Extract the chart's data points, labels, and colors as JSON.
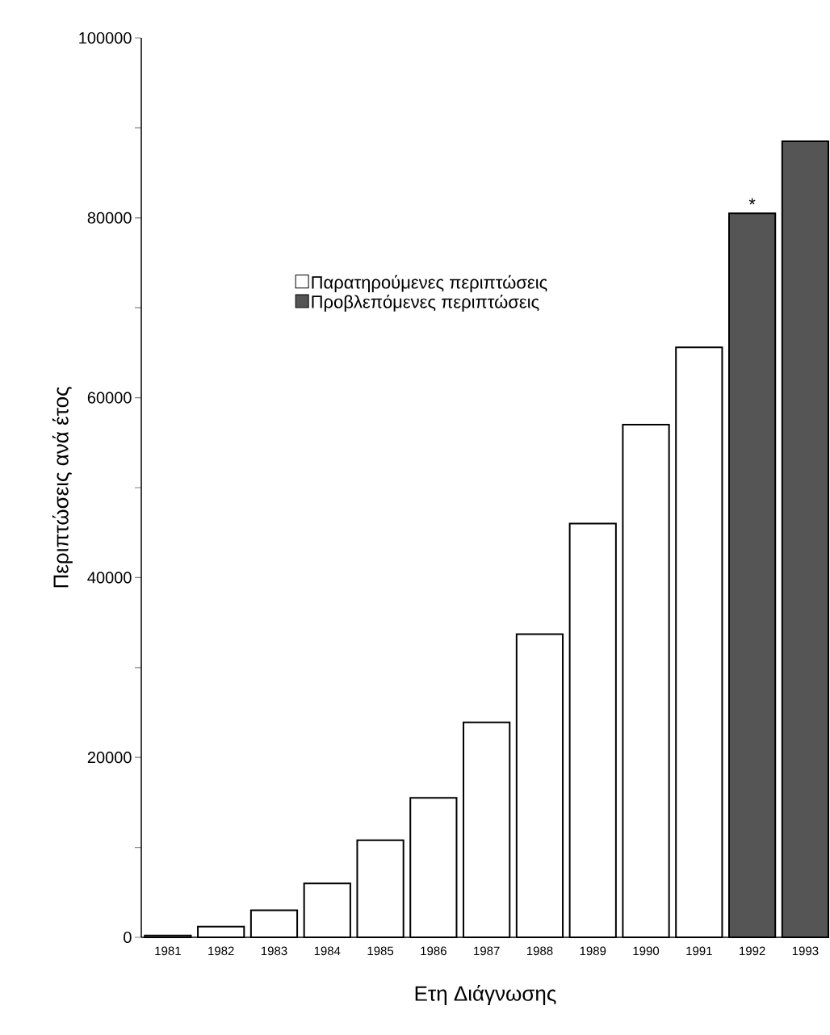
{
  "chart_data": {
    "type": "bar",
    "xlabel": "Ετη Διάγνωσης",
    "ylabel": "Περιπτώσεις ανά έτος",
    "categories": [
      "1981",
      "1982",
      "1983",
      "1984",
      "1985",
      "1986",
      "1987",
      "1988",
      "1989",
      "1990",
      "1991",
      "1992",
      "1993"
    ],
    "series": [
      {
        "name": "Παρατηρούμενες περιπτώσεις",
        "color": "#ffffff",
        "values": [
          200,
          1200,
          3000,
          6000,
          10800,
          15500,
          23900,
          33700,
          46000,
          57000,
          65600,
          null,
          null
        ]
      },
      {
        "name": "Προβλεπόμενες περιπτώσεις",
        "color": "#555555",
        "values": [
          null,
          null,
          null,
          null,
          null,
          null,
          null,
          null,
          null,
          null,
          null,
          80500,
          88500
        ]
      }
    ],
    "ylim": [
      0,
      100000
    ],
    "yticks": [
      0,
      {
        "value": 10000,
        "label": null
      },
      20000,
      {
        "value": 30000,
        "label": null
      },
      40000,
      {
        "value": 50000,
        "label": null
      },
      60000,
      {
        "value": 70000,
        "label": null
      },
      80000,
      {
        "value": 90000,
        "label": null
      },
      100000
    ],
    "legend": "top",
    "annotations": [
      {
        "text": "*",
        "x": "1992",
        "y": 80500
      }
    ]
  }
}
